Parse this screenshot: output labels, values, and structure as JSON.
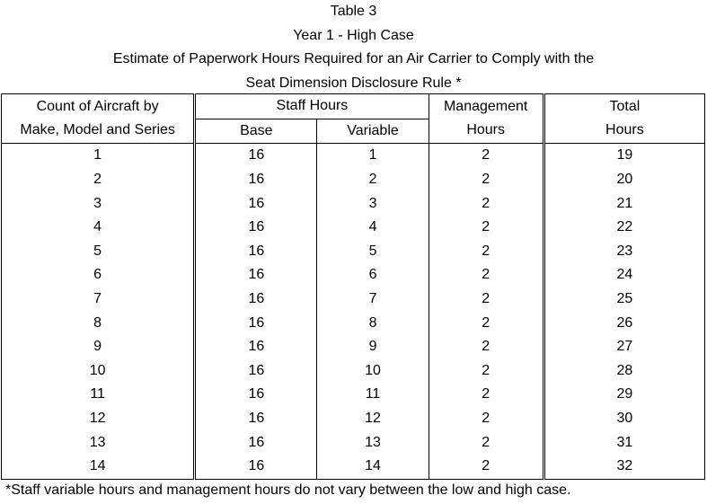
{
  "title": {
    "line1": "Table 3",
    "line2": "Year 1 - High Case",
    "line3": "Estimate of Paperwork Hours Required for an Air Carrier to Comply with the",
    "line4": "Seat Dimension Disclosure Rule *"
  },
  "headers": {
    "count_line1": "Count of Aircraft by",
    "count_line2": "Make, Model and Series",
    "staff": "Staff Hours",
    "base": "Base",
    "variable": "Variable",
    "mgmt_line1": "Management",
    "mgmt_line2": "Hours",
    "total_line1": "Total",
    "total_line2": "Hours"
  },
  "rows": [
    [
      "1",
      "16",
      "1",
      "2",
      "19"
    ],
    [
      "2",
      "16",
      "2",
      "2",
      "20"
    ],
    [
      "3",
      "16",
      "3",
      "2",
      "21"
    ],
    [
      "4",
      "16",
      "4",
      "2",
      "22"
    ],
    [
      "5",
      "16",
      "5",
      "2",
      "23"
    ],
    [
      "6",
      "16",
      "6",
      "2",
      "24"
    ],
    [
      "7",
      "16",
      "7",
      "2",
      "25"
    ],
    [
      "8",
      "16",
      "8",
      "2",
      "26"
    ],
    [
      "9",
      "16",
      "9",
      "2",
      "27"
    ],
    [
      "10",
      "16",
      "10",
      "2",
      "28"
    ],
    [
      "11",
      "16",
      "11",
      "2",
      "29"
    ],
    [
      "12",
      "16",
      "12",
      "2",
      "30"
    ],
    [
      "13",
      "16",
      "13",
      "2",
      "31"
    ],
    [
      "14",
      "16",
      "14",
      "2",
      "32"
    ]
  ],
  "footnote": "*Staff variable hours and management hours do not vary between the low and high case."
}
